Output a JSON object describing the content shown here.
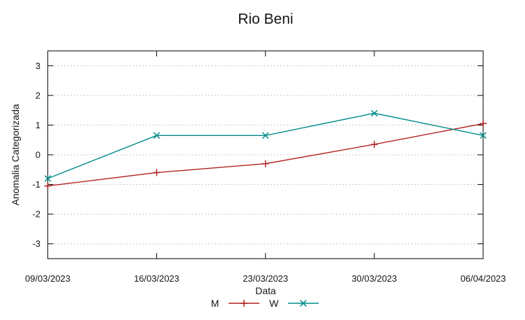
{
  "title": "Rio Beni",
  "chart_data": {
    "type": "line",
    "title": "Rio Beni",
    "xlabel": "Data",
    "ylabel": "Anomalia Categorizada",
    "categories": [
      "09/03/2023",
      "16/03/2023",
      "23/03/2023",
      "30/03/2023",
      "06/04/2023"
    ],
    "series": [
      {
        "name": "M",
        "color": "#b22222",
        "marker": "plus",
        "values": [
          -1.05,
          -0.6,
          -0.3,
          0.35,
          1.05
        ]
      },
      {
        "name": "W",
        "color": "#008b8b",
        "marker": "cross",
        "values": [
          -0.8,
          0.65,
          0.65,
          1.4,
          0.65
        ]
      }
    ],
    "ylim": [
      -3.5,
      3.5
    ],
    "yticks": [
      -3,
      -2,
      -1,
      0,
      1,
      2,
      3
    ],
    "grid": "horizontal-dotted",
    "legend_position": "bottom-center",
    "colors": {
      "background": "#ffffff",
      "border": "#2a2a2a",
      "grid": "#b5b5b5",
      "tick": "#000000",
      "text": "#151515"
    }
  }
}
